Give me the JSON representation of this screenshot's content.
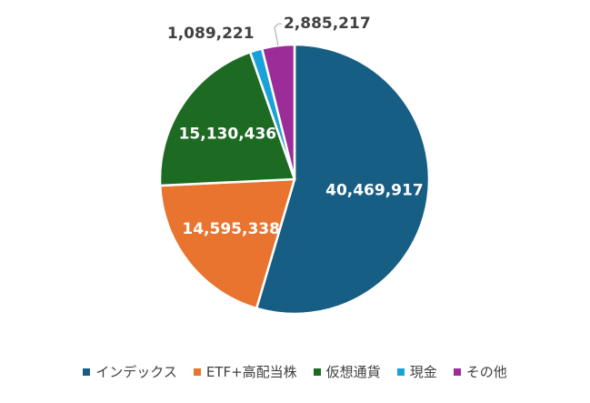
{
  "chart_data": {
    "type": "pie",
    "categories": [
      "インデックス",
      "ETF+高配当株",
      "仮想通貨",
      "現金",
      "その他"
    ],
    "values": [
      40469917,
      14595338,
      15130436,
      1089221,
      2885217
    ],
    "value_labels": [
      "40,469,917",
      "14,595,338",
      "15,130,436",
      "1,089,221",
      "2,885,217"
    ],
    "colors": [
      "#175e84",
      "#e8742f",
      "#1d6b22",
      "#1aa1d8",
      "#9c2d98"
    ],
    "legend": "bottom"
  }
}
